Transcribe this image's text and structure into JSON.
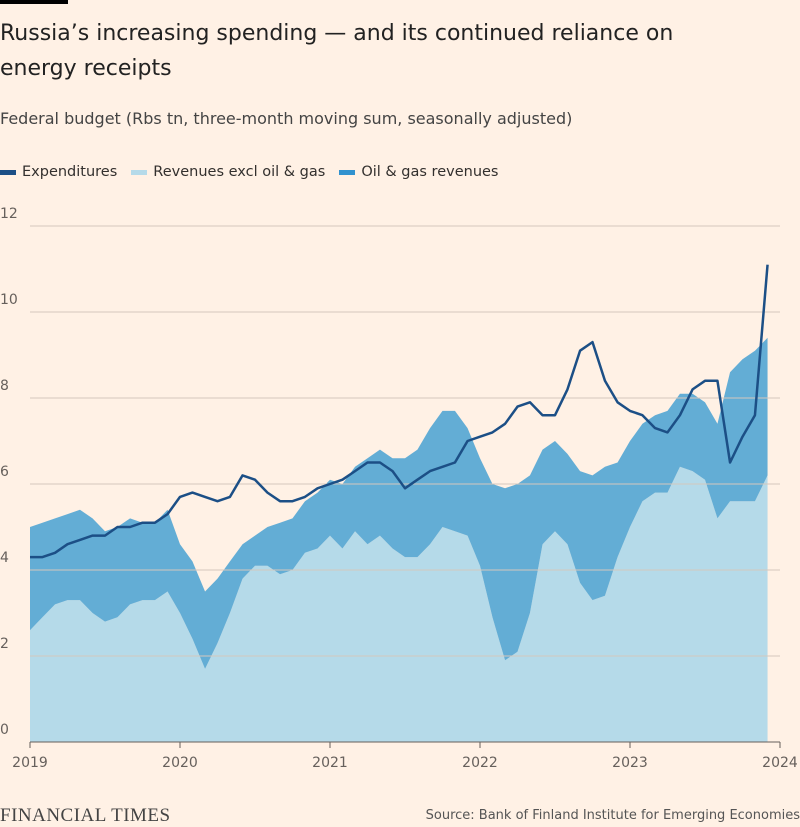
{
  "chart_data": {
    "type": "stacked-area-line",
    "title": "Russia’s increasing spending — and its continued reliance on energy receipts",
    "subtitle": "Federal budget (Rbs tn, three-month moving sum, seasonally adjusted)",
    "source": "Source: Bank of Finland Institute for Emerging Economies",
    "logo": "FINANCIAL TIMES",
    "x": [
      2019,
      2019.083,
      2019.167,
      2019.25,
      2019.333,
      2019.417,
      2019.5,
      2019.583,
      2019.667,
      2019.75,
      2019.833,
      2019.917,
      2020,
      2020.083,
      2020.167,
      2020.25,
      2020.333,
      2020.417,
      2020.5,
      2020.583,
      2020.667,
      2020.75,
      2020.833,
      2020.917,
      2021,
      2021.083,
      2021.167,
      2021.25,
      2021.333,
      2021.417,
      2021.5,
      2021.583,
      2021.667,
      2021.75,
      2021.833,
      2021.917,
      2022,
      2022.083,
      2022.167,
      2022.25,
      2022.333,
      2022.417,
      2022.5,
      2022.583,
      2022.667,
      2022.75,
      2022.833,
      2022.917,
      2023,
      2023.083,
      2023.167,
      2023.25,
      2023.333,
      2023.417,
      2023.5,
      2023.583,
      2023.667,
      2023.75,
      2023.833,
      2023.917
    ],
    "series": [
      {
        "name": "Expenditures",
        "color": "#1c4f86",
        "kind": "line",
        "values": [
          4.3,
          4.3,
          4.4,
          4.6,
          4.7,
          4.8,
          4.8,
          5.0,
          5.0,
          5.1,
          5.1,
          5.3,
          5.7,
          5.8,
          5.7,
          5.6,
          5.7,
          6.2,
          6.1,
          5.8,
          5.6,
          5.6,
          5.7,
          5.9,
          6.0,
          6.1,
          6.3,
          6.5,
          6.5,
          6.3,
          5.9,
          6.1,
          6.3,
          6.4,
          6.5,
          7.0,
          7.1,
          7.2,
          7.4,
          7.8,
          7.9,
          7.6,
          7.6,
          8.2,
          9.1,
          9.3,
          8.4,
          7.9,
          7.7,
          7.6,
          7.3,
          7.2,
          7.6,
          8.2,
          8.4,
          8.4,
          6.5,
          7.1,
          7.6,
          11.1
        ]
      },
      {
        "name": "Revenues excl oil & gas",
        "color": "#b5dae9",
        "kind": "area",
        "values": [
          2.6,
          2.9,
          3.2,
          3.3,
          3.3,
          3.0,
          2.8,
          2.9,
          3.2,
          3.3,
          3.3,
          3.5,
          3.0,
          2.4,
          1.7,
          2.3,
          3.0,
          3.8,
          4.1,
          4.1,
          3.9,
          4.0,
          4.4,
          4.5,
          4.8,
          4.5,
          4.9,
          4.6,
          4.8,
          4.5,
          4.3,
          4.3,
          4.6,
          5.0,
          4.9,
          4.8,
          4.1,
          2.9,
          1.9,
          2.1,
          3.0,
          4.6,
          4.9,
          4.6,
          3.7,
          3.3,
          3.4,
          4.3,
          5.0,
          5.6,
          5.8,
          5.8,
          6.4,
          6.3,
          6.1,
          5.2,
          5.6,
          5.6,
          5.6,
          6.2
        ]
      },
      {
        "name": "Oil & gas revenues",
        "color": "#5ba9d4",
        "kind": "area",
        "values": [
          2.4,
          2.2,
          2.0,
          2.0,
          2.1,
          2.2,
          2.1,
          2.1,
          2.0,
          1.8,
          1.8,
          1.9,
          1.6,
          1.8,
          1.8,
          1.5,
          1.2,
          0.8,
          0.7,
          0.9,
          1.2,
          1.2,
          1.2,
          1.3,
          1.3,
          1.5,
          1.5,
          2.0,
          2.0,
          2.1,
          2.3,
          2.5,
          2.7,
          2.7,
          2.8,
          2.5,
          2.5,
          3.1,
          4.0,
          3.9,
          3.2,
          2.2,
          2.1,
          2.1,
          2.6,
          2.9,
          3.0,
          2.2,
          2.0,
          1.8,
          1.8,
          1.9,
          1.7,
          1.8,
          1.8,
          2.2,
          3.0,
          3.3,
          3.5,
          3.2
        ]
      }
    ],
    "xlim": [
      2019,
      2024
    ],
    "xticks": [
      2019,
      2020,
      2021,
      2022,
      2023,
      2024
    ],
    "ylim": [
      0,
      12
    ],
    "yticks": [
      0,
      2,
      4,
      6,
      8,
      10,
      12
    ],
    "grid": true
  }
}
